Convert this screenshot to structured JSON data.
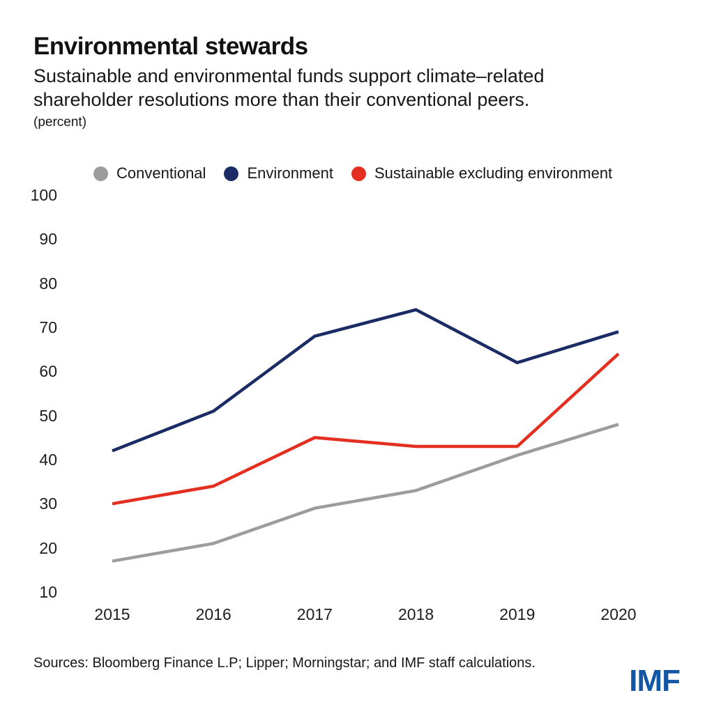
{
  "header": {
    "title": "Environmental stewards",
    "subtitle_line1": "Sustainable and environmental funds support climate–related",
    "subtitle_line2": "shareholder resolutions more than their conventional peers.",
    "unit_note": "(percent)"
  },
  "chart_data": {
    "type": "line",
    "title": "Environmental stewards",
    "unit": "percent",
    "categories": [
      "2015",
      "2016",
      "2017",
      "2018",
      "2019",
      "2020"
    ],
    "series": [
      {
        "name": "Conventional",
        "color": "#9d9c9c",
        "values": [
          17,
          21,
          29,
          33,
          41,
          48
        ]
      },
      {
        "name": "Environment",
        "color": "#1a2b65",
        "values": [
          42,
          51,
          68,
          74,
          62,
          69
        ]
      },
      {
        "name": "Sustainable excluding environment",
        "color": "#e42e1f",
        "values": [
          30,
          34,
          45,
          43,
          43,
          64
        ]
      }
    ],
    "yticks": [
      100,
      90,
      80,
      70,
      60,
      50,
      40,
      30,
      20,
      10
    ],
    "ylim": [
      10,
      100
    ],
    "xlabel": "",
    "ylabel": "",
    "grid": false,
    "legend_position": "top",
    "axis_lines": false
  },
  "footer": {
    "sources": "Sources: Bloomberg Finance L.P; Lipper; Morningstar; and IMF staff calculations.",
    "logo": "IMF",
    "logo_color": "#1458a5"
  }
}
